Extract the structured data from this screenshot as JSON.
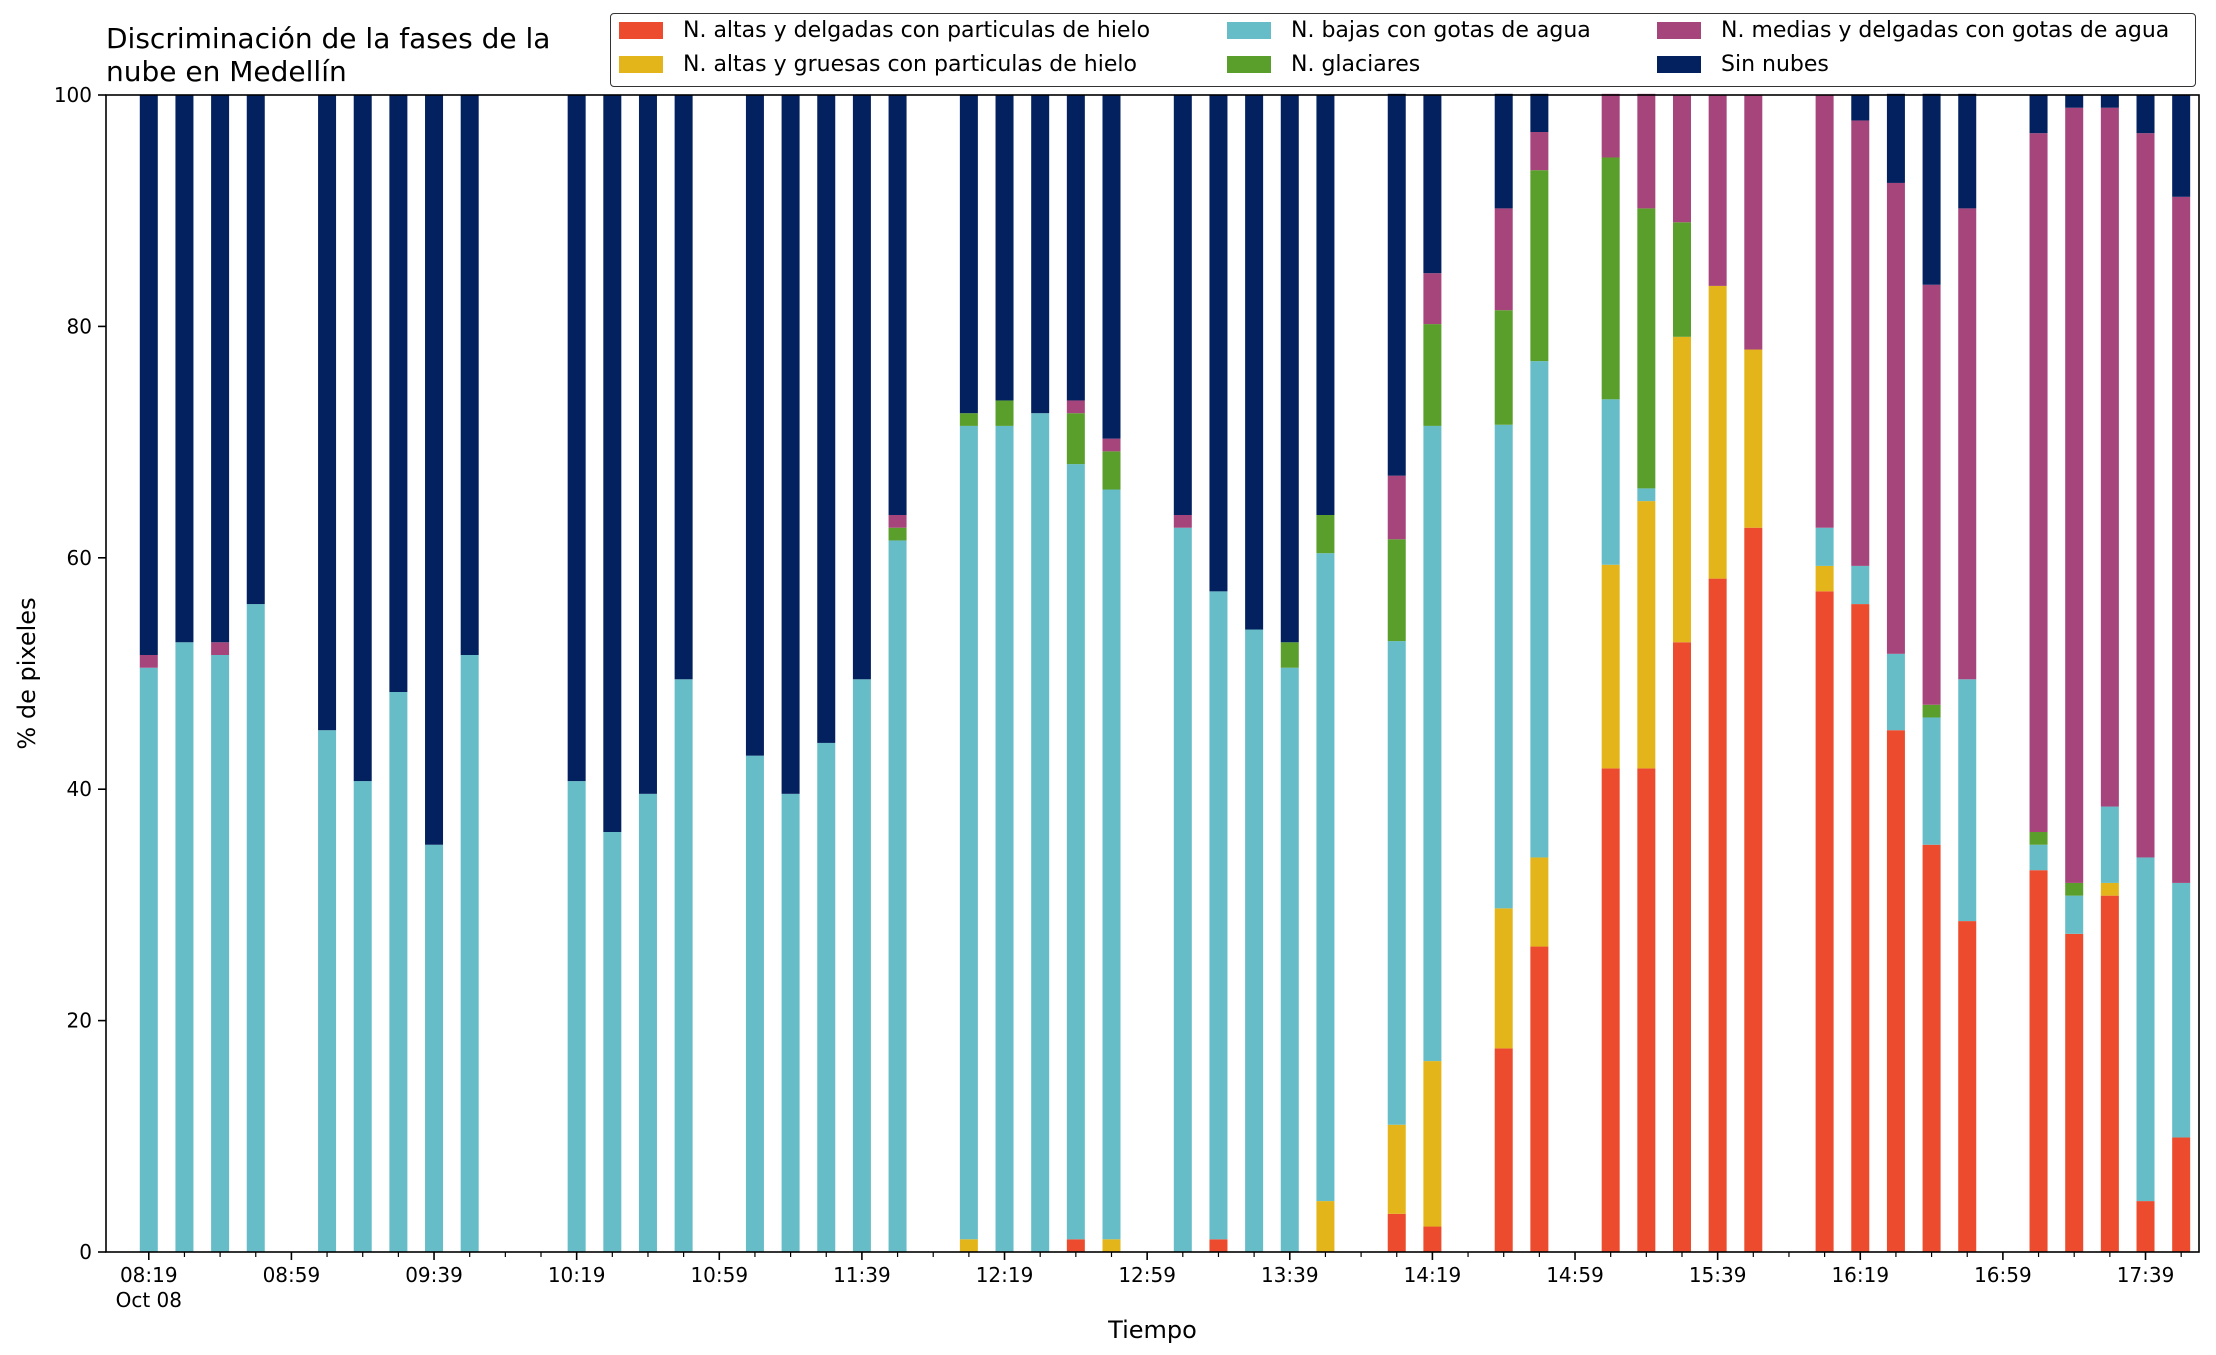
{
  "chart_data": {
    "type": "bar",
    "stacked": true,
    "title_lines": [
      "Discriminación de la fases de la",
      "nube en Medellín"
    ],
    "xlabel": "Tiempo",
    "ylabel": "% de pixeles",
    "ylim": [
      0,
      100
    ],
    "yticks": [
      0,
      20,
      40,
      60,
      80,
      100
    ],
    "xlim_minutes_after_0819": [
      -12,
      575
    ],
    "xtick_labels": [
      {
        "minute": 0,
        "label": "08:19",
        "sublabel": "Oct 08"
      },
      {
        "minute": 40,
        "label": "08:59"
      },
      {
        "minute": 80,
        "label": "09:39"
      },
      {
        "minute": 120,
        "label": "10:19"
      },
      {
        "minute": 160,
        "label": "10:59"
      },
      {
        "minute": 200,
        "label": "11:39"
      },
      {
        "minute": 240,
        "label": "12:19"
      },
      {
        "minute": 280,
        "label": "12:59"
      },
      {
        "minute": 320,
        "label": "13:39"
      },
      {
        "minute": 360,
        "label": "14:19"
      },
      {
        "minute": 400,
        "label": "14:59"
      },
      {
        "minute": 440,
        "label": "15:39"
      },
      {
        "minute": 480,
        "label": "16:19"
      },
      {
        "minute": 520,
        "label": "16:59"
      },
      {
        "minute": 560,
        "label": "17:39"
      }
    ],
    "grid": false,
    "legend_position": "top-right",
    "series": [
      {
        "name": "N. altas y delgadas con particulas de hielo",
        "color": "#ec4b2d"
      },
      {
        "name": "N. altas y gruesas con particulas de hielo",
        "color": "#e4b51a"
      },
      {
        "name": "N. bajas con gotas de agua",
        "color": "#66bdc8"
      },
      {
        "name": "N. glaciares",
        "color": "#5a9e2c"
      },
      {
        "name": "N. medias y delgadas con gotas de agua",
        "color": "#a6457b"
      },
      {
        "name": "Sin nubes",
        "color": "#03205f"
      }
    ],
    "legend_order": [
      0,
      2,
      4,
      1,
      3,
      5
    ],
    "times": [
      "08:19",
      "08:29",
      "08:39",
      "08:49",
      "09:09",
      "09:19",
      "09:29",
      "09:39",
      "09:49",
      "10:19",
      "10:29",
      "10:39",
      "10:49",
      "11:09",
      "11:19",
      "11:29",
      "11:39",
      "11:49",
      "12:09",
      "12:19",
      "12:29",
      "12:39",
      "12:49",
      "13:09",
      "13:19",
      "13:29",
      "13:39",
      "13:49",
      "14:09",
      "14:19",
      "14:39",
      "14:49",
      "15:09",
      "15:19",
      "15:29",
      "15:39",
      "15:49",
      "16:09",
      "16:19",
      "16:29",
      "16:39",
      "16:49",
      "17:09",
      "17:19",
      "17:29",
      "17:39",
      "17:49"
    ],
    "minutes": [
      0,
      10,
      20,
      30,
      50,
      60,
      70,
      80,
      90,
      120,
      130,
      140,
      150,
      170,
      180,
      190,
      200,
      210,
      230,
      240,
      250,
      260,
      270,
      290,
      300,
      310,
      320,
      330,
      350,
      360,
      380,
      390,
      410,
      420,
      430,
      440,
      450,
      470,
      480,
      490,
      500,
      510,
      530,
      540,
      550,
      560,
      570
    ],
    "values": [
      [
        0,
        0,
        50.5,
        0,
        1.1,
        48.4
      ],
      [
        0,
        0,
        52.7,
        0,
        0,
        47.3
      ],
      [
        0,
        0,
        51.6,
        0,
        1.1,
        47.3
      ],
      [
        0,
        0,
        56.0,
        0,
        0,
        44.0
      ],
      [
        0,
        0,
        45.1,
        0,
        0,
        54.9
      ],
      [
        0,
        0,
        40.7,
        0,
        0,
        59.3
      ],
      [
        0,
        0,
        48.4,
        0,
        0,
        51.6
      ],
      [
        0,
        0,
        35.2,
        0,
        0,
        64.8
      ],
      [
        0,
        0,
        51.6,
        0,
        0,
        48.4
      ],
      [
        0,
        0,
        40.7,
        0,
        0,
        59.3
      ],
      [
        0,
        0,
        36.3,
        0,
        0,
        63.7
      ],
      [
        0,
        0,
        39.6,
        0,
        0,
        60.4
      ],
      [
        0,
        0,
        49.5,
        0,
        0,
        50.5
      ],
      [
        0,
        0,
        42.9,
        0,
        0,
        57.1
      ],
      [
        0,
        0,
        39.6,
        0,
        0,
        60.4
      ],
      [
        0,
        0,
        44.0,
        0,
        0,
        56.0
      ],
      [
        0,
        0,
        49.5,
        0,
        0,
        50.5
      ],
      [
        0,
        0,
        61.5,
        1.1,
        1.1,
        36.3
      ],
      [
        0,
        1.1,
        70.3,
        1.1,
        0,
        27.5
      ],
      [
        0,
        0,
        71.4,
        2.2,
        0,
        26.4
      ],
      [
        0,
        0,
        72.5,
        0,
        0,
        27.5
      ],
      [
        1.1,
        0,
        67.0,
        4.4,
        1.1,
        26.4
      ],
      [
        0,
        1.1,
        64.8,
        3.3,
        1.1,
        29.7
      ],
      [
        0,
        0,
        62.6,
        0,
        1.1,
        36.3
      ],
      [
        1.1,
        0,
        56.0,
        0,
        0,
        42.9
      ],
      [
        0,
        0,
        53.8,
        0,
        0,
        46.2
      ],
      [
        0,
        0,
        50.5,
        2.2,
        0,
        47.3
      ],
      [
        0,
        4.4,
        56.0,
        3.3,
        0,
        36.3
      ],
      [
        3.3,
        7.7,
        41.8,
        8.8,
        5.5,
        33.0
      ],
      [
        2.2,
        14.3,
        54.9,
        8.8,
        4.4,
        15.4
      ],
      [
        17.6,
        12.1,
        41.8,
        9.9,
        8.8,
        9.9
      ],
      [
        26.4,
        7.7,
        42.9,
        16.5,
        3.3,
        3.3
      ],
      [
        41.8,
        17.6,
        14.3,
        20.9,
        5.5,
        0
      ],
      [
        41.8,
        23.1,
        1.1,
        24.2,
        9.9,
        0
      ],
      [
        52.7,
        26.4,
        0,
        9.9,
        11.0,
        0
      ],
      [
        58.2,
        25.3,
        0,
        0,
        16.5,
        0
      ],
      [
        62.6,
        15.4,
        0,
        0,
        22.0,
        0
      ],
      [
        57.1,
        2.2,
        3.3,
        0,
        37.4,
        0
      ],
      [
        56.0,
        0,
        3.3,
        0,
        38.5,
        2.2
      ],
      [
        45.1,
        0,
        6.6,
        0,
        40.7,
        7.7
      ],
      [
        35.2,
        0,
        11.0,
        1.1,
        36.3,
        16.5
      ],
      [
        28.6,
        0,
        20.9,
        0,
        40.7,
        9.9
      ],
      [
        33.0,
        0,
        2.2,
        1.1,
        60.4,
        3.3
      ],
      [
        27.5,
        0,
        3.3,
        1.1,
        67.0,
        1.1
      ],
      [
        30.8,
        1.1,
        6.6,
        0,
        60.4,
        1.1
      ],
      [
        4.4,
        0,
        29.7,
        0,
        62.6,
        3.3
      ],
      [
        9.9,
        0,
        22.0,
        0,
        59.3,
        8.8
      ]
    ]
  }
}
